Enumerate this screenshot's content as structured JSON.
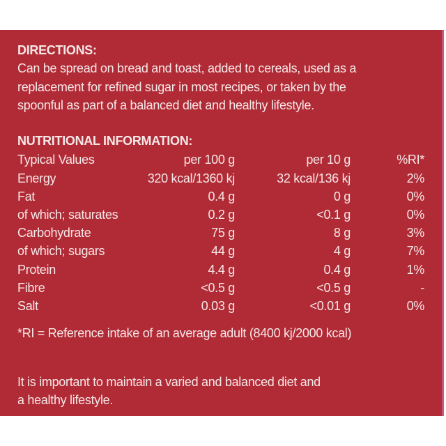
{
  "directions": {
    "heading": "DIRECTIONS:",
    "lines": [
      "Can be spread on bread and toast, added to cereals, used as a",
      "replacement for refined sugar in most recipes, or taken by the",
      "spoonful as part of a balanced diet and healthy lifestyle."
    ]
  },
  "nutrition": {
    "heading": "NUTRITIONAL INFORMATION:",
    "columns": [
      "Typical Values",
      "per 100 g",
      "per 10 g",
      "%RI*"
    ],
    "rows": [
      [
        "Energy",
        "320 kcal/1360 kj",
        "32 kcal/136 kj",
        "2%"
      ],
      [
        "Fat",
        "0.4 g",
        "0 g",
        "0%"
      ],
      [
        "of which; saturates",
        "0.2 g",
        "<0.1 g",
        "0%"
      ],
      [
        "Carbohydrate",
        "75 g",
        "8 g",
        "3%"
      ],
      [
        "of which; sugars",
        "44 g",
        "4 g",
        "7%"
      ],
      [
        "Protein",
        "4.4 g",
        "0.4 g",
        "1%"
      ],
      [
        "Fibre",
        "<0.5 g",
        "<0.5 g",
        "-"
      ],
      [
        "Salt",
        "0.03 g",
        "<0.01 g",
        "0%"
      ]
    ],
    "footnote": "*RI = Reference intake of an average adult (8400 kj/2000 kcal)"
  },
  "advice": {
    "lines": [
      "It is important to maintain a varied and balanced diet and",
      "a healthy lifestyle."
    ]
  },
  "colors": {
    "panel": "#b12b36",
    "text": "#f6e7e7"
  }
}
